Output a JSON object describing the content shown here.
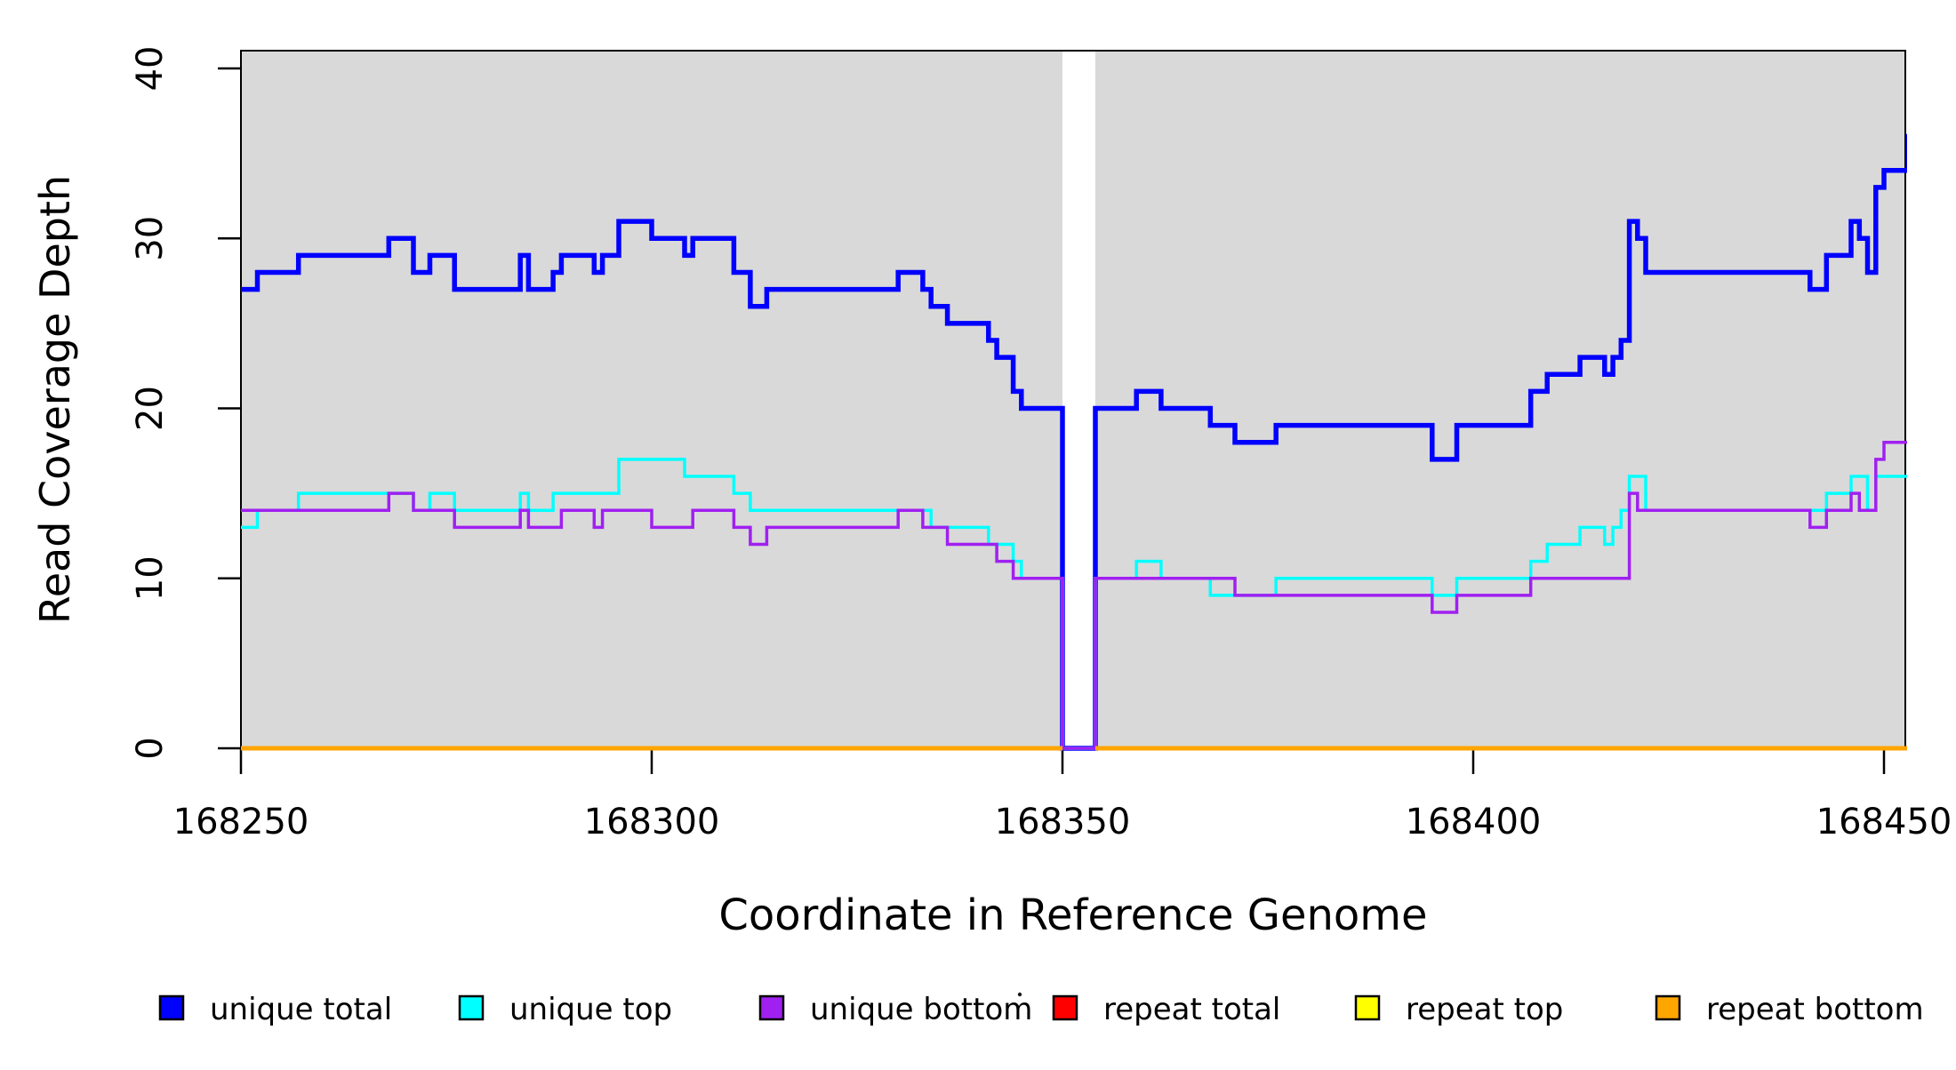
{
  "figure": {
    "background_color": "#FFFFFF",
    "plot_background_color": "#D9D9D9",
    "box_border_color": "#000000",
    "text_color": "#000000"
  },
  "chart_data": {
    "type": "line",
    "subtype": "step-coverage",
    "title": "",
    "xlabel": "Coordinate in Reference Genome",
    "ylabel": "Read Coverage Depth",
    "x_axis": {
      "ticks": [
        168250,
        168300,
        168350,
        168400,
        168450
      ],
      "min": 168250,
      "max": 168452.6
    },
    "y_axis": {
      "ticks": [
        0,
        10,
        20,
        30,
        40
      ],
      "min": 0,
      "max": 41.05
    },
    "grid": false,
    "legend_position": "bottom",
    "x_start": 168250,
    "no_data_region": {
      "start_bp": 168350,
      "end_bp": 168354
    },
    "run_format": "[start_offset_bp, end_offset_bp_inclusive, depth] ; bp = x_start + offset",
    "series": [
      {
        "name": "unique total",
        "color": "#0000FF",
        "runs": [
          [
            0,
            1,
            27
          ],
          [
            2,
            6,
            28
          ],
          [
            7,
            17,
            29
          ],
          [
            18,
            20,
            30
          ],
          [
            21,
            22,
            28
          ],
          [
            23,
            25,
            29
          ],
          [
            26,
            33,
            27
          ],
          [
            34,
            34,
            29
          ],
          [
            35,
            37,
            27
          ],
          [
            38,
            38,
            28
          ],
          [
            39,
            42,
            29
          ],
          [
            43,
            43,
            28
          ],
          [
            44,
            45,
            29
          ],
          [
            46,
            49,
            31
          ],
          [
            50,
            53,
            30
          ],
          [
            54,
            54,
            29
          ],
          [
            55,
            59,
            30
          ],
          [
            60,
            61,
            28
          ],
          [
            62,
            63,
            26
          ],
          [
            64,
            79,
            27
          ],
          [
            80,
            82,
            28
          ],
          [
            83,
            83,
            27
          ],
          [
            84,
            85,
            26
          ],
          [
            86,
            90,
            25
          ],
          [
            91,
            91,
            24
          ],
          [
            92,
            93,
            23
          ],
          [
            94,
            94,
            21
          ],
          [
            95,
            99,
            20
          ],
          [
            100,
            103,
            0
          ],
          [
            104,
            108,
            20
          ],
          [
            109,
            111,
            21
          ],
          [
            112,
            117,
            20
          ],
          [
            118,
            120,
            19
          ],
          [
            121,
            125,
            18
          ],
          [
            126,
            144,
            19
          ],
          [
            145,
            147,
            17
          ],
          [
            148,
            156,
            19
          ],
          [
            157,
            158,
            21
          ],
          [
            159,
            162,
            22
          ],
          [
            163,
            165,
            23
          ],
          [
            166,
            166,
            22
          ],
          [
            167,
            167,
            23
          ],
          [
            168,
            168,
            24
          ],
          [
            169,
            169,
            31
          ],
          [
            170,
            170,
            30
          ],
          [
            171,
            190,
            28
          ],
          [
            191,
            192,
            27
          ],
          [
            193,
            195,
            29
          ],
          [
            196,
            196,
            31
          ],
          [
            197,
            197,
            30
          ],
          [
            198,
            198,
            28
          ],
          [
            199,
            199,
            33
          ],
          [
            200,
            202,
            34
          ],
          [
            203,
            203,
            36
          ]
        ]
      },
      {
        "name": "unique top",
        "color": "#00FFFF",
        "runs": [
          [
            0,
            1,
            13
          ],
          [
            2,
            6,
            14
          ],
          [
            7,
            20,
            15
          ],
          [
            21,
            22,
            14
          ],
          [
            23,
            25,
            15
          ],
          [
            26,
            33,
            14
          ],
          [
            34,
            34,
            15
          ],
          [
            35,
            37,
            14
          ],
          [
            38,
            45,
            15
          ],
          [
            46,
            53,
            17
          ],
          [
            54,
            59,
            16
          ],
          [
            60,
            61,
            15
          ],
          [
            62,
            83,
            14
          ],
          [
            84,
            90,
            13
          ],
          [
            91,
            93,
            12
          ],
          [
            94,
            94,
            11
          ],
          [
            95,
            99,
            10
          ],
          [
            100,
            103,
            0
          ],
          [
            104,
            108,
            10
          ],
          [
            109,
            111,
            11
          ],
          [
            112,
            117,
            10
          ],
          [
            118,
            125,
            9
          ],
          [
            126,
            144,
            10
          ],
          [
            145,
            147,
            9
          ],
          [
            148,
            156,
            10
          ],
          [
            157,
            158,
            11
          ],
          [
            159,
            162,
            12
          ],
          [
            163,
            165,
            13
          ],
          [
            166,
            166,
            12
          ],
          [
            167,
            167,
            13
          ],
          [
            168,
            168,
            14
          ],
          [
            169,
            170,
            16
          ],
          [
            171,
            192,
            14
          ],
          [
            193,
            195,
            15
          ],
          [
            196,
            197,
            16
          ],
          [
            198,
            198,
            14
          ],
          [
            199,
            202,
            16
          ],
          [
            203,
            203,
            18
          ]
        ]
      },
      {
        "name": "unique bottom",
        "color": "#A020F0",
        "runs": [
          [
            0,
            17,
            14
          ],
          [
            18,
            20,
            15
          ],
          [
            21,
            25,
            14
          ],
          [
            26,
            33,
            13
          ],
          [
            34,
            34,
            14
          ],
          [
            35,
            38,
            13
          ],
          [
            39,
            42,
            14
          ],
          [
            43,
            43,
            13
          ],
          [
            44,
            49,
            14
          ],
          [
            50,
            54,
            13
          ],
          [
            55,
            59,
            14
          ],
          [
            60,
            61,
            13
          ],
          [
            62,
            63,
            12
          ],
          [
            64,
            79,
            13
          ],
          [
            80,
            82,
            14
          ],
          [
            83,
            85,
            13
          ],
          [
            86,
            91,
            12
          ],
          [
            92,
            93,
            11
          ],
          [
            94,
            99,
            10
          ],
          [
            100,
            103,
            0
          ],
          [
            104,
            120,
            10
          ],
          [
            121,
            144,
            9
          ],
          [
            145,
            147,
            8
          ],
          [
            148,
            156,
            9
          ],
          [
            157,
            168,
            10
          ],
          [
            169,
            169,
            15
          ],
          [
            170,
            190,
            14
          ],
          [
            191,
            192,
            13
          ],
          [
            193,
            195,
            14
          ],
          [
            196,
            196,
            15
          ],
          [
            197,
            198,
            14
          ],
          [
            199,
            199,
            17
          ],
          [
            200,
            203,
            18
          ]
        ]
      },
      {
        "name": "repeat total",
        "color": "#FF0000",
        "runs": [
          [
            0,
            99,
            0
          ],
          [
            104,
            203,
            0
          ]
        ]
      },
      {
        "name": "repeat top",
        "color": "#FFFF00",
        "runs": [
          [
            0,
            99,
            0
          ],
          [
            104,
            203,
            0
          ]
        ]
      },
      {
        "name": "repeat bottom",
        "color": "#FFA500",
        "runs": [
          [
            0,
            99,
            0
          ],
          [
            104,
            203,
            0
          ]
        ]
      }
    ]
  },
  "legend": {
    "items": [
      {
        "label": "unique total",
        "color": "#0000FF"
      },
      {
        "label": "unique top",
        "color": "#00FFFF"
      },
      {
        "label": "unique bottom",
        "color": "#A020F0"
      },
      {
        "label": "repeat total",
        "color": "#FF0000"
      },
      {
        "label": "repeat top",
        "color": "#FFFF00"
      },
      {
        "label": "repeat bottom",
        "color": "#FFA500"
      }
    ]
  }
}
